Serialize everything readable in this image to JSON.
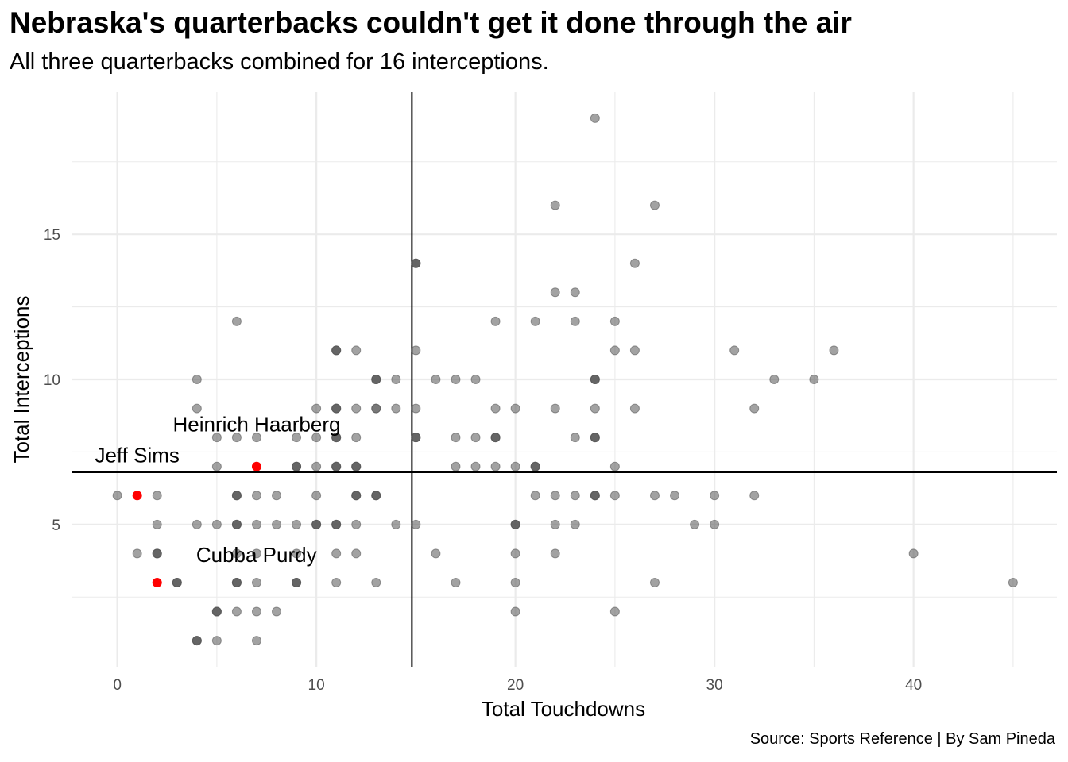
{
  "title": "Nebraska's quarterbacks couldn't get it done through the air",
  "subtitle": "All three quarterbacks combined for 16 interceptions.",
  "caption": "Source: Sports Reference | By Sam Pineda",
  "chart_data": {
    "type": "scatter",
    "xlabel": "Total Touchdowns",
    "ylabel": "Total Interceptions",
    "xlim": [
      -2.3,
      47.2
    ],
    "ylim": [
      0.1,
      19.9
    ],
    "xticks": [
      0,
      10,
      20,
      30,
      40
    ],
    "yticks": [
      5,
      10,
      15
    ],
    "grid": true,
    "reference_lines": {
      "vertical_x": 14.8,
      "horizontal_y": 6.8
    },
    "colors": {
      "point": "#555555",
      "highlight": "#ff0000",
      "grid": "#ebebeb",
      "reference": "#000000"
    },
    "points": [
      [
        24,
        19
      ],
      [
        22,
        16
      ],
      [
        27,
        16
      ],
      [
        15,
        14
      ],
      [
        15,
        14
      ],
      [
        15,
        14
      ],
      [
        26,
        14
      ],
      [
        22,
        13
      ],
      [
        23,
        13
      ],
      [
        6,
        12
      ],
      [
        19,
        12
      ],
      [
        21,
        12
      ],
      [
        23,
        12
      ],
      [
        25,
        12
      ],
      [
        11,
        11
      ],
      [
        11,
        11
      ],
      [
        11,
        11
      ],
      [
        12,
        11
      ],
      [
        15,
        11
      ],
      [
        25,
        11
      ],
      [
        26,
        11
      ],
      [
        31,
        11
      ],
      [
        36,
        11
      ],
      [
        4,
        10
      ],
      [
        13,
        10
      ],
      [
        13,
        10
      ],
      [
        13,
        10
      ],
      [
        14,
        10
      ],
      [
        16,
        10
      ],
      [
        17,
        10
      ],
      [
        18,
        10
      ],
      [
        24,
        10
      ],
      [
        24,
        10
      ],
      [
        24,
        10
      ],
      [
        33,
        10
      ],
      [
        35,
        10
      ],
      [
        4,
        9
      ],
      [
        10,
        9
      ],
      [
        11,
        9
      ],
      [
        11,
        9
      ],
      [
        11,
        9
      ],
      [
        12,
        9
      ],
      [
        13,
        9
      ],
      [
        13,
        9
      ],
      [
        14,
        9
      ],
      [
        15,
        9
      ],
      [
        19,
        9
      ],
      [
        20,
        9
      ],
      [
        22,
        9
      ],
      [
        24,
        9
      ],
      [
        26,
        9
      ],
      [
        32,
        9
      ],
      [
        5,
        8
      ],
      [
        6,
        8
      ],
      [
        7,
        8
      ],
      [
        9,
        8
      ],
      [
        10,
        8
      ],
      [
        11,
        8
      ],
      [
        11,
        8
      ],
      [
        11,
        8
      ],
      [
        12,
        8
      ],
      [
        15,
        8
      ],
      [
        15,
        8
      ],
      [
        15,
        8
      ],
      [
        17,
        8
      ],
      [
        18,
        8
      ],
      [
        19,
        8
      ],
      [
        19,
        8
      ],
      [
        19,
        8
      ],
      [
        23,
        8
      ],
      [
        24,
        8
      ],
      [
        24,
        8
      ],
      [
        24,
        8
      ],
      [
        5,
        7
      ],
      [
        9,
        7
      ],
      [
        9,
        7
      ],
      [
        9,
        7
      ],
      [
        10,
        7
      ],
      [
        11,
        7
      ],
      [
        11,
        7
      ],
      [
        11,
        7
      ],
      [
        12,
        7
      ],
      [
        12,
        7
      ],
      [
        12,
        7
      ],
      [
        17,
        7
      ],
      [
        18,
        7
      ],
      [
        19,
        7
      ],
      [
        20,
        7
      ],
      [
        21,
        7
      ],
      [
        21,
        7
      ],
      [
        21,
        7
      ],
      [
        25,
        7
      ],
      [
        0,
        6
      ],
      [
        2,
        6
      ],
      [
        6,
        6
      ],
      [
        6,
        6
      ],
      [
        6,
        6
      ],
      [
        7,
        6
      ],
      [
        8,
        6
      ],
      [
        10,
        6
      ],
      [
        12,
        6
      ],
      [
        12,
        6
      ],
      [
        12,
        6
      ],
      [
        13,
        6
      ],
      [
        13,
        6
      ],
      [
        13,
        6
      ],
      [
        21,
        6
      ],
      [
        22,
        6
      ],
      [
        23,
        6
      ],
      [
        24,
        6
      ],
      [
        24,
        6
      ],
      [
        24,
        6
      ],
      [
        25,
        6
      ],
      [
        27,
        6
      ],
      [
        28,
        6
      ],
      [
        30,
        6
      ],
      [
        32,
        6
      ],
      [
        2,
        5
      ],
      [
        4,
        5
      ],
      [
        5,
        5
      ],
      [
        6,
        5
      ],
      [
        6,
        5
      ],
      [
        6,
        5
      ],
      [
        7,
        5
      ],
      [
        8,
        5
      ],
      [
        9,
        5
      ],
      [
        10,
        5
      ],
      [
        10,
        5
      ],
      [
        10,
        5
      ],
      [
        11,
        5
      ],
      [
        11,
        5
      ],
      [
        11,
        5
      ],
      [
        12,
        5
      ],
      [
        14,
        5
      ],
      [
        15,
        5
      ],
      [
        20,
        5
      ],
      [
        20,
        5
      ],
      [
        20,
        5
      ],
      [
        22,
        5
      ],
      [
        23,
        5
      ],
      [
        29,
        5
      ],
      [
        30,
        5
      ],
      [
        1,
        4
      ],
      [
        2,
        4
      ],
      [
        2,
        4
      ],
      [
        2,
        4
      ],
      [
        6,
        4
      ],
      [
        7,
        4
      ],
      [
        9,
        4
      ],
      [
        11,
        4
      ],
      [
        12,
        4
      ],
      [
        16,
        4
      ],
      [
        20,
        4
      ],
      [
        22,
        4
      ],
      [
        40,
        4
      ],
      [
        3,
        3
      ],
      [
        3,
        3
      ],
      [
        3,
        3
      ],
      [
        6,
        3
      ],
      [
        6,
        3
      ],
      [
        6,
        3
      ],
      [
        7,
        3
      ],
      [
        9,
        3
      ],
      [
        9,
        3
      ],
      [
        9,
        3
      ],
      [
        11,
        3
      ],
      [
        13,
        3
      ],
      [
        17,
        3
      ],
      [
        20,
        3
      ],
      [
        27,
        3
      ],
      [
        45,
        3
      ],
      [
        5,
        2
      ],
      [
        5,
        2
      ],
      [
        5,
        2
      ],
      [
        6,
        2
      ],
      [
        7,
        2
      ],
      [
        8,
        2
      ],
      [
        20,
        2
      ],
      [
        25,
        2
      ],
      [
        4,
        1
      ],
      [
        4,
        1
      ],
      [
        4,
        1
      ],
      [
        5,
        1
      ],
      [
        7,
        1
      ]
    ],
    "highlights": [
      {
        "name": "Jeff Sims",
        "x": 1,
        "y": 6
      },
      {
        "name": "Heinrich Haarberg",
        "x": 7,
        "y": 7
      },
      {
        "name": "Cubba Purdy",
        "x": 2,
        "y": 3
      }
    ]
  }
}
